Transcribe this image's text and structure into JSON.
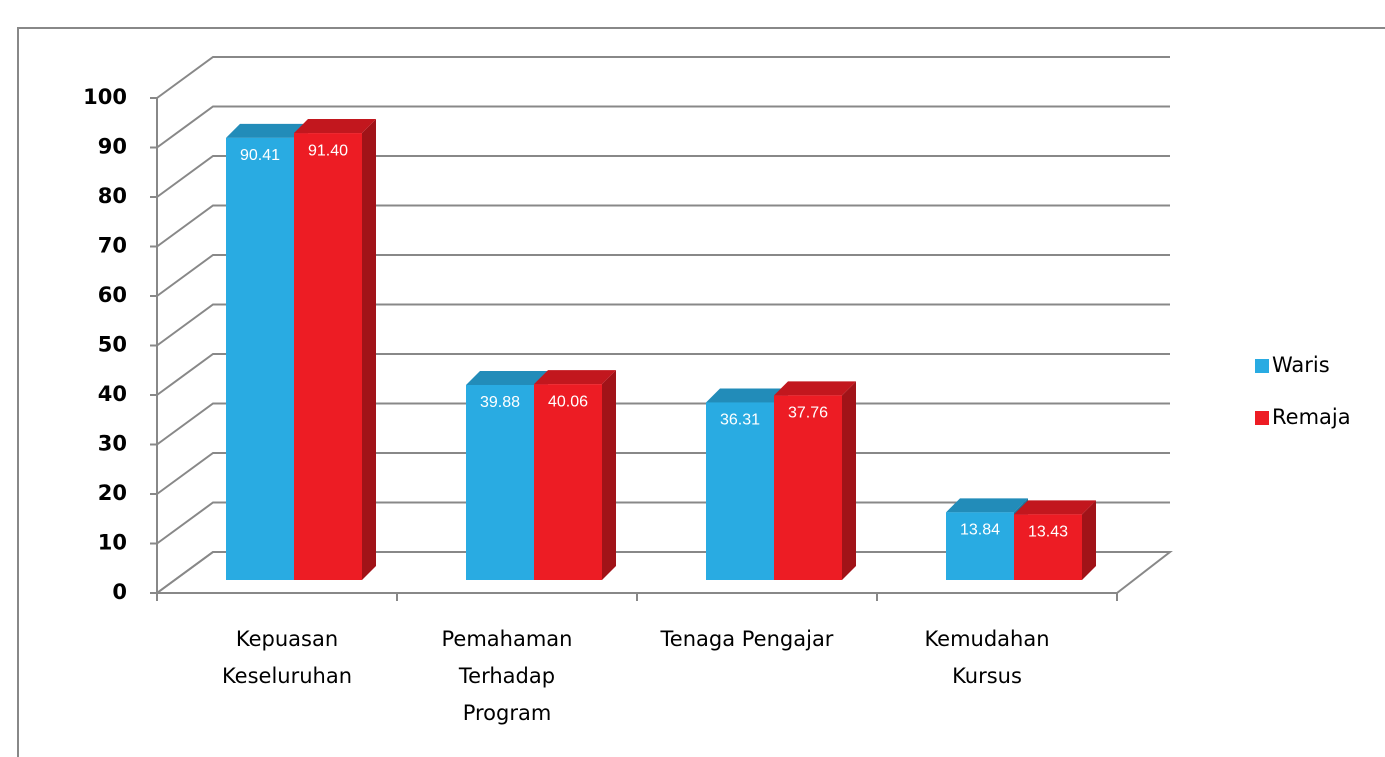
{
  "chart_data": {
    "type": "bar3d",
    "categories": [
      [
        "Kepuasan",
        "Keseluruhan"
      ],
      [
        "Pemahaman",
        "Terhadap",
        "Program"
      ],
      [
        "Tenaga Pengajar"
      ],
      [
        "Kemudahan",
        "Kursus"
      ]
    ],
    "series": [
      {
        "name": "Waris",
        "color": "#29abe2",
        "values": [
          90.41,
          39.88,
          36.31,
          13.84
        ],
        "value_labels": [
          "90.41",
          "39.88",
          "36.31",
          "13.84"
        ]
      },
      {
        "name": "Remaja",
        "color": "#ed1c24",
        "values": [
          91.4,
          40.06,
          37.76,
          13.43
        ],
        "value_labels": [
          "91.40",
          "40.06",
          "37.76",
          "13.43"
        ]
      }
    ],
    "ylim": [
      0,
      100
    ],
    "yticks": [
      0,
      10,
      20,
      30,
      40,
      50,
      60,
      70,
      80,
      90,
      100
    ],
    "grid": true,
    "legend": "right"
  }
}
